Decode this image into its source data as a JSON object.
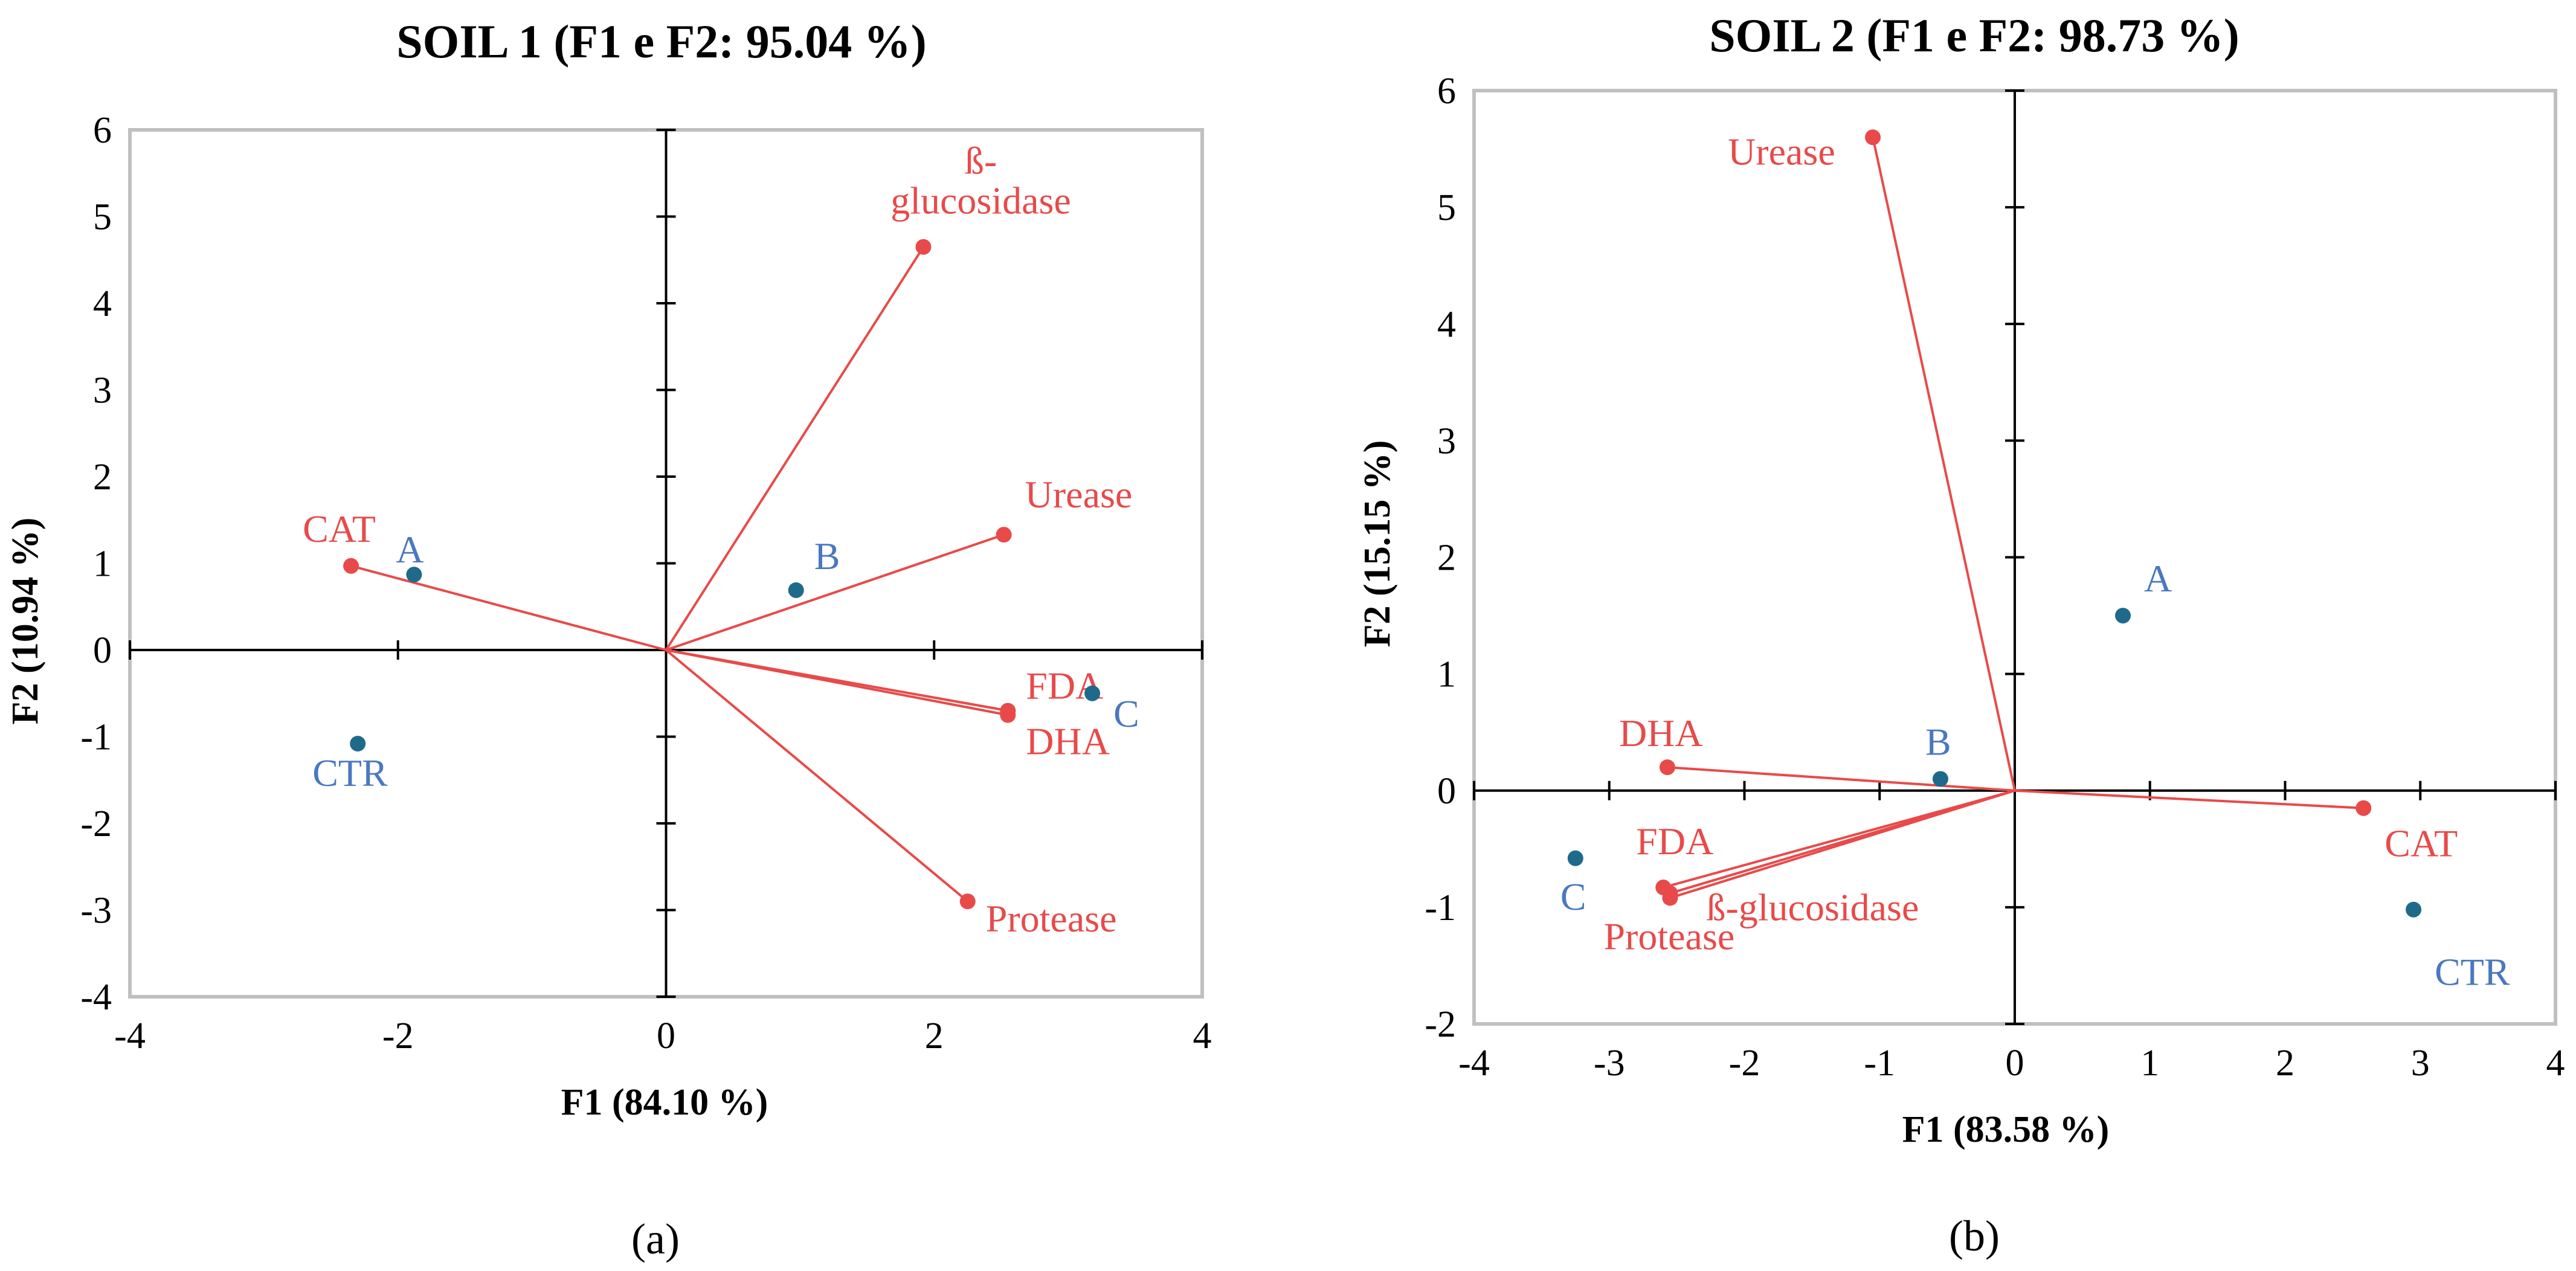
{
  "chart_data": [
    {
      "type": "scatter",
      "title": "SOIL 1 (F1 e F2: 95.04 %)",
      "xlabel": "F1 (84.10 %)",
      "ylabel": "F2 (10.94 %)",
      "xlim": [
        -4,
        4
      ],
      "ylim": [
        -4,
        6
      ],
      "xticks": [
        -4,
        -2,
        0,
        2,
        4
      ],
      "yticks": [
        -4,
        -3,
        -2,
        -1,
        0,
        1,
        2,
        3,
        4,
        5,
        6
      ],
      "panel_label": "(a)",
      "series": [
        {
          "name": "variables",
          "color": "#e84a4a",
          "style": "vector",
          "points": [
            {
              "label": [
                "ß-",
                "glucosidase"
              ],
              "x": 1.92,
              "y": 4.65
            },
            {
              "label": [
                "Urease"
              ],
              "x": 2.52,
              "y": 1.33
            },
            {
              "label": [
                "FDA"
              ],
              "x": 2.55,
              "y": -0.7
            },
            {
              "label": [
                "DHA"
              ],
              "x": 2.55,
              "y": -0.75
            },
            {
              "label": [
                "Protease"
              ],
              "x": 2.25,
              "y": -2.9
            },
            {
              "label": [
                "CAT"
              ],
              "x": -2.35,
              "y": 0.97
            }
          ]
        },
        {
          "name": "observations",
          "color": "#1f6a8a",
          "label_color": "#4a78bf",
          "style": "point",
          "points": [
            {
              "label": [
                "A"
              ],
              "x": -1.88,
              "y": 0.87
            },
            {
              "label": [
                "B"
              ],
              "x": 0.97,
              "y": 0.69
            },
            {
              "label": [
                "C"
              ],
              "x": 3.18,
              "y": -0.5
            },
            {
              "label": [
                "CTR"
              ],
              "x": -2.3,
              "y": -1.08
            }
          ]
        }
      ]
    },
    {
      "type": "scatter",
      "title": "SOIL 2 (F1 e F2: 98.73 %)",
      "xlabel": "F1 (83.58 %)",
      "ylabel": "F2 (15.15 %)",
      "xlim": [
        -4,
        4
      ],
      "ylim": [
        -2,
        6
      ],
      "xticks": [
        -4,
        -3,
        -2,
        -1,
        0,
        1,
        2,
        3,
        4
      ],
      "yticks": [
        -2,
        -1,
        0,
        1,
        2,
        3,
        4,
        5,
        6
      ],
      "panel_label": "(b)",
      "series": [
        {
          "name": "variables",
          "color": "#e84a4a",
          "style": "vector",
          "points": [
            {
              "label": [
                "Urease"
              ],
              "x": -1.05,
              "y": 5.6
            },
            {
              "label": [
                "DHA"
              ],
              "x": -2.57,
              "y": 0.2
            },
            {
              "label": [
                "FDA"
              ],
              "x": -2.6,
              "y": -0.83
            },
            {
              "label": [
                "ß-glucosidase"
              ],
              "x": -2.55,
              "y": -0.88
            },
            {
              "label": [
                "Protease"
              ],
              "x": -2.55,
              "y": -0.92
            },
            {
              "label": [
                "CAT"
              ],
              "x": 2.58,
              "y": -0.15
            }
          ]
        },
        {
          "name": "observations",
          "color": "#1f6a8a",
          "label_color": "#4a78bf",
          "style": "point",
          "points": [
            {
              "label": [
                "A"
              ],
              "x": 0.8,
              "y": 1.5
            },
            {
              "label": [
                "B"
              ],
              "x": -0.55,
              "y": 0.1
            },
            {
              "label": [
                "C"
              ],
              "x": -3.25,
              "y": -0.58
            },
            {
              "label": [
                "CTR"
              ],
              "x": 2.95,
              "y": -1.02
            }
          ]
        }
      ]
    }
  ]
}
